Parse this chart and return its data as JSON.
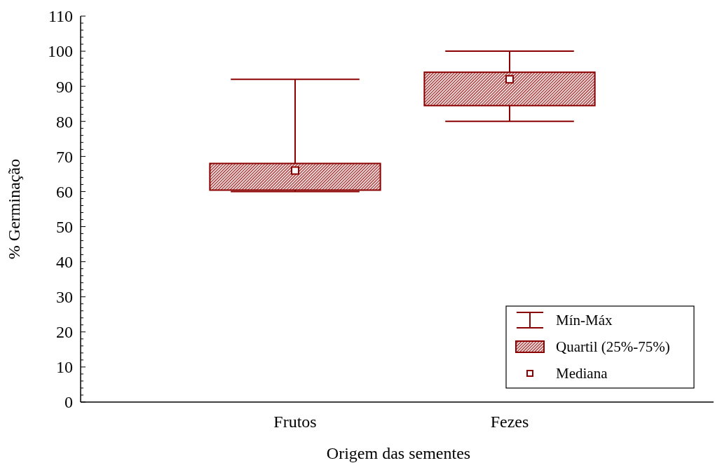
{
  "chart_data": {
    "type": "box",
    "xlabel": "Origem das sementes",
    "ylabel": "% Germinação",
    "categories": [
      "Frutos",
      "Fezes"
    ],
    "boxes": [
      {
        "low": 60,
        "q1": 60.4,
        "median": 66,
        "q3": 68,
        "high": 92
      },
      {
        "low": 80,
        "q1": 84.5,
        "median": 92,
        "q3": 94,
        "high": 100
      }
    ],
    "color": "#8b0000",
    "marker": "square",
    "grid": false,
    "annotations": [
      "Mín-Máx",
      "Quartil (25%-75%)",
      "Mediana"
    ],
    "ylim": [
      0,
      110
    ],
    "yticks": [
      0,
      {
        "value": 2,
        "label": null
      },
      {
        "value": 4,
        "label": null
      },
      {
        "value": 6,
        "label": null
      },
      {
        "value": 8,
        "label": null
      },
      10,
      {
        "value": 12,
        "label": null
      },
      {
        "value": 14,
        "label": null
      },
      {
        "value": 16,
        "label": null
      },
      {
        "value": 18,
        "label": null
      },
      20,
      {
        "value": 22,
        "label": null
      },
      {
        "value": 24,
        "label": null
      },
      {
        "value": 26,
        "label": null
      },
      {
        "value": 28,
        "label": null
      },
      30,
      {
        "value": 32,
        "label": null
      },
      {
        "value": 34,
        "label": null
      },
      {
        "value": 36,
        "label": null
      },
      {
        "value": 38,
        "label": null
      },
      40,
      {
        "value": 42,
        "label": null
      },
      {
        "value": 44,
        "label": null
      },
      {
        "value": 46,
        "label": null
      },
      {
        "value": 48,
        "label": null
      },
      50,
      {
        "value": 52,
        "label": null
      },
      {
        "value": 54,
        "label": null
      },
      {
        "value": 56,
        "label": null
      },
      {
        "value": 58,
        "label": null
      },
      60,
      {
        "value": 62,
        "label": null
      },
      {
        "value": 64,
        "label": null
      },
      {
        "value": 66,
        "label": null
      },
      {
        "value": 68,
        "label": null
      },
      70,
      {
        "value": 72,
        "label": null
      },
      {
        "value": 74,
        "label": null
      },
      {
        "value": 76,
        "label": null
      },
      {
        "value": 78,
        "label": null
      },
      80,
      {
        "value": 82,
        "label": null
      },
      {
        "value": 84,
        "label": null
      },
      {
        "value": 86,
        "label": null
      },
      {
        "value": 88,
        "label": null
      },
      90,
      {
        "value": 92,
        "label": null
      },
      {
        "value": 94,
        "label": null
      },
      {
        "value": 96,
        "label": null
      },
      {
        "value": 98,
        "label": null
      },
      100,
      {
        "value": 102,
        "label": null
      },
      {
        "value": 104,
        "label": null
      },
      {
        "value": 106,
        "label": null
      },
      {
        "value": 108,
        "label": null
      },
      110
    ]
  }
}
